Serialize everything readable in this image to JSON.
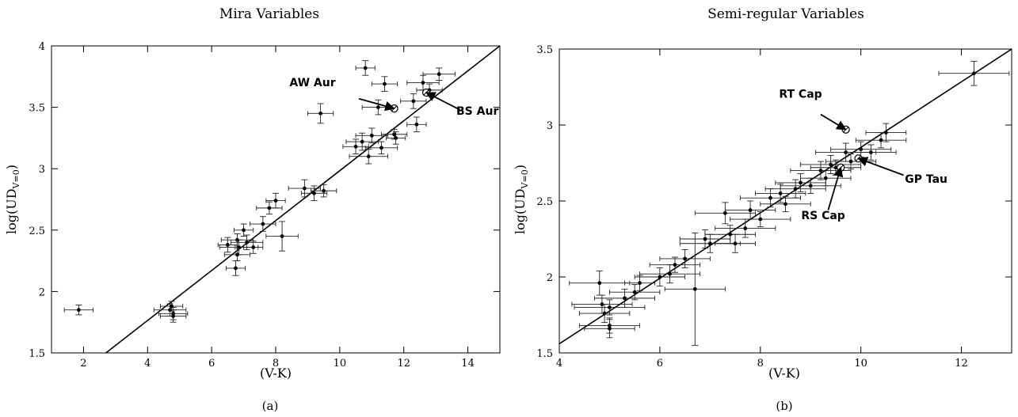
{
  "chart_data": [
    {
      "type": "scatter",
      "title": "Mira Variables",
      "xlabel": "(V-K)",
      "ylabel": "log(UD",
      "ylabel_sub": "V=0",
      "ylabel_close": ")",
      "caption": "(a)",
      "xlim": [
        1,
        15
      ],
      "ylim": [
        1.5,
        4
      ],
      "xticks": [
        2,
        4,
        6,
        8,
        10,
        12,
        14
      ],
      "yticks": [
        1.5,
        2,
        2.5,
        3,
        3.5,
        4
      ],
      "xtick_labels": [
        "2",
        "4",
        "6",
        "8",
        "10",
        "12",
        "14"
      ],
      "ytick_labels": [
        "1.5",
        "2",
        "2.5",
        "3",
        "3.5",
        "4"
      ],
      "grid": false,
      "fit_line": {
        "x": [
          2.7,
          15
        ],
        "y": [
          1.5,
          4.0
        ]
      },
      "points": [
        {
          "x": 1.85,
          "y": 1.85,
          "xerr": 0.45,
          "yerr": 0.04
        },
        {
          "x": 4.7,
          "y": 1.85,
          "xerr": 0.5,
          "yerr": 0.05
        },
        {
          "x": 4.8,
          "y": 1.82,
          "xerr": 0.45,
          "yerr": 0.05
        },
        {
          "x": 4.75,
          "y": 1.88,
          "xerr": 0.35,
          "yerr": 0.04
        },
        {
          "x": 4.8,
          "y": 1.8,
          "xerr": 0.4,
          "yerr": 0.05
        },
        {
          "x": 6.5,
          "y": 2.38,
          "xerr": 0.3,
          "yerr": 0.06
        },
        {
          "x": 6.8,
          "y": 2.42,
          "xerr": 0.5,
          "yerr": 0.05
        },
        {
          "x": 6.85,
          "y": 2.36,
          "xerr": 0.6,
          "yerr": 0.06
        },
        {
          "x": 6.8,
          "y": 2.3,
          "xerr": 0.4,
          "yerr": 0.05
        },
        {
          "x": 6.75,
          "y": 2.19,
          "xerr": 0.3,
          "yerr": 0.06
        },
        {
          "x": 7.0,
          "y": 2.5,
          "xerr": 0.3,
          "yerr": 0.05
        },
        {
          "x": 7.1,
          "y": 2.4,
          "xerr": 0.5,
          "yerr": 0.06
        },
        {
          "x": 7.3,
          "y": 2.36,
          "xerr": 0.3,
          "yerr": 0.05
        },
        {
          "x": 7.6,
          "y": 2.55,
          "xerr": 0.4,
          "yerr": 0.06
        },
        {
          "x": 7.8,
          "y": 2.68,
          "xerr": 0.4,
          "yerr": 0.05
        },
        {
          "x": 8.0,
          "y": 2.74,
          "xerr": 0.3,
          "yerr": 0.06
        },
        {
          "x": 8.2,
          "y": 2.45,
          "xerr": 0.5,
          "yerr": 0.12
        },
        {
          "x": 8.9,
          "y": 2.84,
          "xerr": 0.5,
          "yerr": 0.07
        },
        {
          "x": 9.2,
          "y": 2.8,
          "xerr": 0.4,
          "yerr": 0.06
        },
        {
          "x": 9.5,
          "y": 2.82,
          "xerr": 0.4,
          "yerr": 0.05
        },
        {
          "x": 9.4,
          "y": 3.45,
          "xerr": 0.4,
          "yerr": 0.08
        },
        {
          "x": 10.5,
          "y": 3.18,
          "xerr": 0.4,
          "yerr": 0.06
        },
        {
          "x": 10.7,
          "y": 3.22,
          "xerr": 0.5,
          "yerr": 0.07
        },
        {
          "x": 10.9,
          "y": 3.1,
          "xerr": 0.6,
          "yerr": 0.06
        },
        {
          "x": 11.0,
          "y": 3.27,
          "xerr": 0.5,
          "yerr": 0.06
        },
        {
          "x": 10.8,
          "y": 3.82,
          "xerr": 0.3,
          "yerr": 0.06
        },
        {
          "x": 11.4,
          "y": 3.69,
          "xerr": 0.4,
          "yerr": 0.06
        },
        {
          "x": 11.2,
          "y": 3.5,
          "xerr": 0.5,
          "yerr": 0.06
        },
        {
          "x": 11.3,
          "y": 3.17,
          "xerr": 0.5,
          "yerr": 0.05
        },
        {
          "x": 11.75,
          "y": 3.25,
          "xerr": 0.3,
          "yerr": 0.05
        },
        {
          "x": 11.7,
          "y": 3.28,
          "xerr": 0.4,
          "yerr": 0.04
        },
        {
          "x": 12.4,
          "y": 3.36,
          "xerr": 0.3,
          "yerr": 0.06
        },
        {
          "x": 12.3,
          "y": 3.55,
          "xerr": 0.4,
          "yerr": 0.06
        },
        {
          "x": 12.6,
          "y": 3.7,
          "xerr": 0.5,
          "yerr": 0.06
        },
        {
          "x": 12.8,
          "y": 3.64,
          "xerr": 0.4,
          "yerr": 0.05
        },
        {
          "x": 13.1,
          "y": 3.77,
          "xerr": 0.5,
          "yerr": 0.05
        }
      ],
      "annotations": [
        {
          "text": "AW Aur",
          "x": 11.7,
          "y": 3.49,
          "label_x": 9.15,
          "label_y": 3.67,
          "arrow_start_x": 10.6,
          "arrow_start_y": 3.57
        },
        {
          "text": "BS Aur",
          "x": 12.7,
          "y": 3.62,
          "label_x": 14.3,
          "label_y": 3.44,
          "arrow_start_x": 13.75,
          "arrow_start_y": 3.48
        }
      ]
    },
    {
      "type": "scatter",
      "title": "Semi-regular Variables",
      "xlabel": "(V-K)",
      "ylabel": "log(UD",
      "ylabel_sub": "V=0",
      "ylabel_close": ")",
      "caption": "(b)",
      "xlim": [
        4,
        13
      ],
      "ylim": [
        1.5,
        3.5
      ],
      "xticks": [
        4,
        6,
        8,
        10,
        12
      ],
      "yticks": [
        1.5,
        2,
        2.5,
        3,
        3.5
      ],
      "xtick_labels": [
        "4",
        "6",
        "8",
        "10",
        "12"
      ],
      "ytick_labels": [
        "1.5",
        "2",
        "2.5",
        "3",
        "3.5"
      ],
      "grid": false,
      "fit_line": {
        "x": [
          4,
          13
        ],
        "y": [
          1.56,
          3.5
        ]
      },
      "points": [
        {
          "x": 4.8,
          "y": 1.96,
          "xerr": 0.6,
          "yerr": 0.08
        },
        {
          "x": 4.85,
          "y": 1.82,
          "xerr": 0.6,
          "yerr": 0.06
        },
        {
          "x": 4.9,
          "y": 1.76,
          "xerr": 0.5,
          "yerr": 0.06
        },
        {
          "x": 5.0,
          "y": 1.8,
          "xerr": 0.7,
          "yerr": 0.05
        },
        {
          "x": 5.0,
          "y": 1.68,
          "xerr": 0.6,
          "yerr": 0.05
        },
        {
          "x": 5.0,
          "y": 1.66,
          "xerr": 0.5,
          "yerr": 0.06
        },
        {
          "x": 5.3,
          "y": 1.86,
          "xerr": 0.6,
          "yerr": 0.06
        },
        {
          "x": 5.5,
          "y": 1.9,
          "xerr": 0.5,
          "yerr": 0.05
        },
        {
          "x": 5.6,
          "y": 1.96,
          "xerr": 0.3,
          "yerr": 0.05
        },
        {
          "x": 6.0,
          "y": 2.0,
          "xerr": 0.5,
          "yerr": 0.06
        },
        {
          "x": 6.2,
          "y": 2.02,
          "xerr": 0.6,
          "yerr": 0.06
        },
        {
          "x": 6.3,
          "y": 2.08,
          "xerr": 0.5,
          "yerr": 0.05
        },
        {
          "x": 6.5,
          "y": 2.12,
          "xerr": 0.5,
          "yerr": 0.06
        },
        {
          "x": 6.7,
          "y": 1.92,
          "xerr": 0.6,
          "yerr": 0.37
        },
        {
          "x": 6.9,
          "y": 2.25,
          "xerr": 0.5,
          "yerr": 0.06
        },
        {
          "x": 7.0,
          "y": 2.22,
          "xerr": 0.6,
          "yerr": 0.06
        },
        {
          "x": 7.3,
          "y": 2.42,
          "xerr": 0.6,
          "yerr": 0.07
        },
        {
          "x": 7.4,
          "y": 2.28,
          "xerr": 0.5,
          "yerr": 0.06
        },
        {
          "x": 7.5,
          "y": 2.22,
          "xerr": 0.4,
          "yerr": 0.06
        },
        {
          "x": 7.7,
          "y": 2.32,
          "xerr": 0.6,
          "yerr": 0.06
        },
        {
          "x": 7.8,
          "y": 2.44,
          "xerr": 0.5,
          "yerr": 0.06
        },
        {
          "x": 8.0,
          "y": 2.38,
          "xerr": 0.6,
          "yerr": 0.05
        },
        {
          "x": 8.2,
          "y": 2.52,
          "xerr": 0.6,
          "yerr": 0.06
        },
        {
          "x": 8.4,
          "y": 2.55,
          "xerr": 0.5,
          "yerr": 0.06
        },
        {
          "x": 8.5,
          "y": 2.48,
          "xerr": 0.5,
          "yerr": 0.05
        },
        {
          "x": 8.7,
          "y": 2.58,
          "xerr": 0.6,
          "yerr": 0.06
        },
        {
          "x": 8.8,
          "y": 2.62,
          "xerr": 0.5,
          "yerr": 0.06
        },
        {
          "x": 9.0,
          "y": 2.6,
          "xerr": 0.6,
          "yerr": 0.05
        },
        {
          "x": 9.2,
          "y": 2.7,
          "xerr": 0.6,
          "yerr": 0.06
        },
        {
          "x": 9.3,
          "y": 2.65,
          "xerr": 0.5,
          "yerr": 0.05
        },
        {
          "x": 9.4,
          "y": 2.74,
          "xerr": 0.6,
          "yerr": 0.06
        },
        {
          "x": 9.5,
          "y": 2.72,
          "xerr": 0.5,
          "yerr": 0.05
        },
        {
          "x": 9.7,
          "y": 2.82,
          "xerr": 0.6,
          "yerr": 0.06
        },
        {
          "x": 9.8,
          "y": 2.76,
          "xerr": 0.5,
          "yerr": 0.05
        },
        {
          "x": 10.0,
          "y": 2.84,
          "xerr": 0.6,
          "yerr": 0.05
        },
        {
          "x": 10.2,
          "y": 2.82,
          "xerr": 0.5,
          "yerr": 0.05
        },
        {
          "x": 10.4,
          "y": 2.9,
          "xerr": 0.5,
          "yerr": 0.05
        },
        {
          "x": 10.5,
          "y": 2.95,
          "xerr": 0.4,
          "yerr": 0.06
        },
        {
          "x": 12.25,
          "y": 3.34,
          "xerr": 0.7,
          "yerr": 0.08
        }
      ],
      "annotations": [
        {
          "text": "RT Cap",
          "x": 9.7,
          "y": 2.97,
          "label_x": 8.8,
          "label_y": 3.18,
          "arrow_start_x": 9.2,
          "arrow_start_y": 3.07
        },
        {
          "text": "GP Tau",
          "x": 9.95,
          "y": 2.78,
          "label_x": 11.3,
          "label_y": 2.62,
          "arrow_start_x": 10.85,
          "arrow_start_y": 2.67
        },
        {
          "text": "RS Cap",
          "x": 9.6,
          "y": 2.72,
          "label_x": 9.25,
          "label_y": 2.38,
          "arrow_start_x": 9.35,
          "arrow_start_y": 2.44
        }
      ]
    }
  ]
}
